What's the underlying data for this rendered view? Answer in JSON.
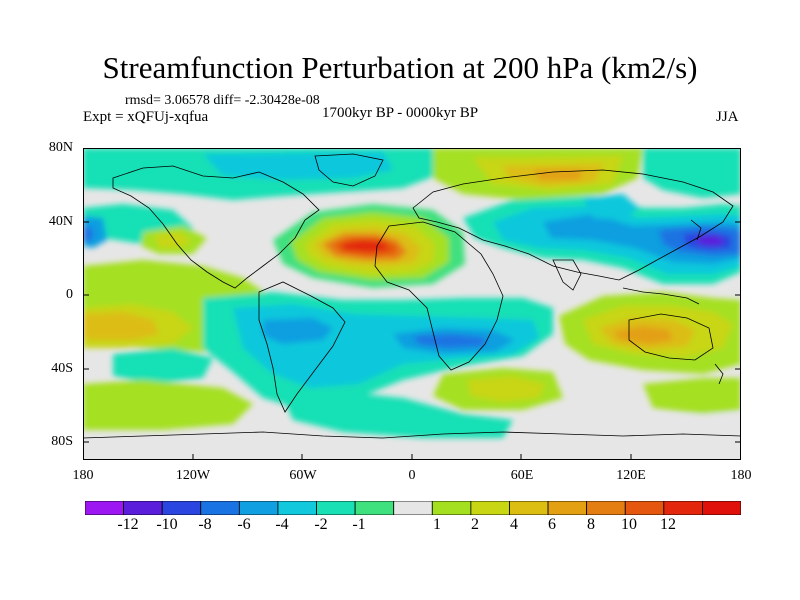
{
  "figure": {
    "title": "Streamfunction Perturbation at 200 hPa (km2/s)",
    "stats": "rmsd= 3.06578 diff= -2.30428e-08",
    "experiment": "Expt = xQFUj-xqfua",
    "period": "1700kyr BP - 0000kyr BP",
    "season": "JJA"
  },
  "axes": {
    "lat_labels": [
      "80N",
      "40N",
      "0",
      "40S",
      "80S"
    ],
    "lon_labels": [
      "180",
      "120W",
      "60W",
      "0",
      "60E",
      "120E",
      "180"
    ]
  },
  "colorbar": {
    "labels": [
      "-12",
      "-10",
      "-8",
      "-6",
      "-4",
      "-2",
      "-1",
      "1",
      "2",
      "4",
      "6",
      "8",
      "10",
      "12"
    ],
    "colors": [
      "#9d17f2",
      "#5b1fdc",
      "#2a45e0",
      "#1a73e2",
      "#109fe0",
      "#11c8dc",
      "#19e0b5",
      "#3fe07e",
      "#e6e6e6",
      "#a5e020",
      "#c8d614",
      "#dcbd12",
      "#e3a012",
      "#e57e12",
      "#e5560f",
      "#e2270c",
      "#e0100a"
    ]
  },
  "colors": {
    "background": "#e6e6e6",
    "coast": "#000000"
  }
}
